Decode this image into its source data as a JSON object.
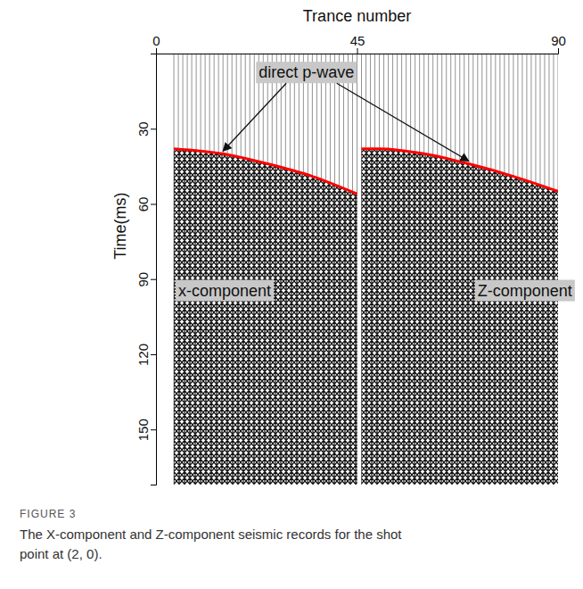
{
  "chart_data": {
    "type": "line",
    "x_label": "Trance number",
    "y_label": "Time(ms)",
    "xlim": [
      0,
      90
    ],
    "xticks": [
      0,
      45,
      90
    ],
    "ylim": [
      0,
      172
    ],
    "yticks": [
      30,
      60,
      90,
      120,
      150
    ],
    "trace_range": [
      4,
      90
    ],
    "series": [
      {
        "color": "#ff0000",
        "x": [
          4,
          15,
          25,
          35,
          45
        ],
        "values": [
          38,
          40,
          44,
          49,
          56
        ]
      },
      {
        "color": "#ff0000",
        "x": [
          46,
          50,
          60,
          70,
          80,
          90
        ],
        "values": [
          38,
          38,
          40,
          44,
          49,
          55
        ]
      }
    ],
    "annotations": [
      {
        "text": "direct p-wave",
        "x": 23,
        "y": 8
      },
      {
        "text": "x-component",
        "x": 5,
        "y": 95
      },
      {
        "text": "Z-component",
        "x": 72,
        "y": 95
      }
    ],
    "figure_label": "FIGURE 3",
    "caption": "The X-component and Z-component seismic records for the shot point at (2, 0)."
  }
}
